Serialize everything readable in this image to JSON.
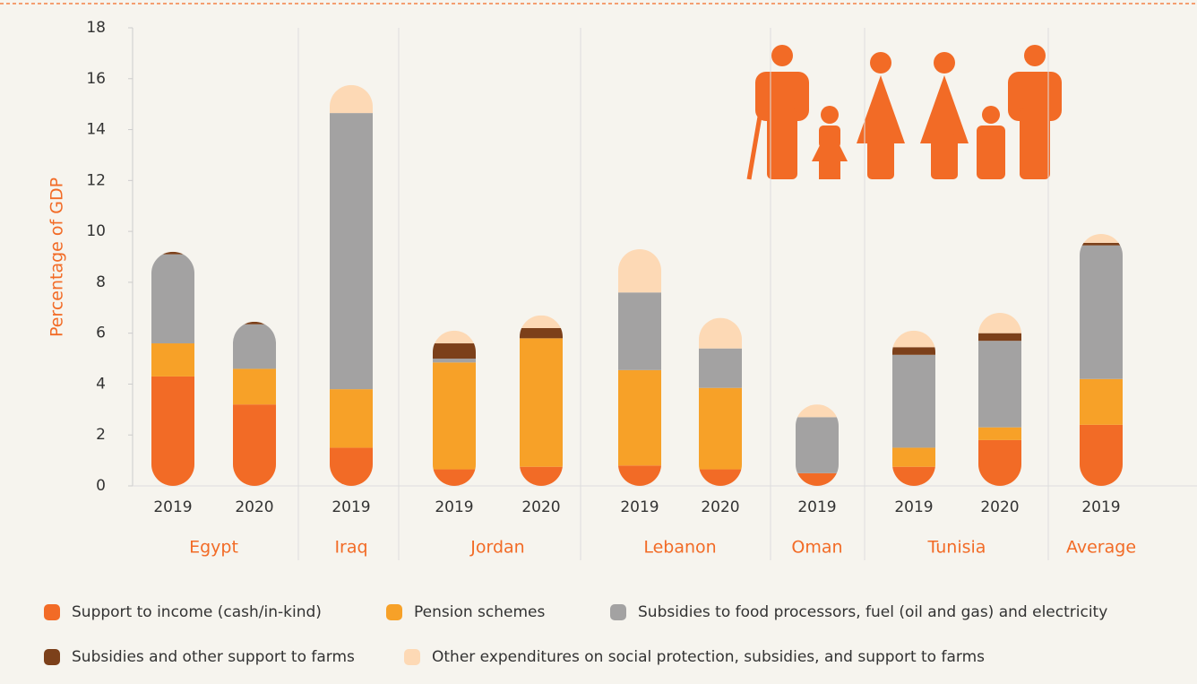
{
  "chart_data": {
    "type": "stacked_bar",
    "y_label": "Percentage of GDP",
    "groups": [
      {
        "name": "Egypt",
        "categories": [
          "2019",
          "2020"
        ]
      },
      {
        "name": "Iraq",
        "categories": [
          "2019"
        ]
      },
      {
        "name": "Jordan",
        "categories": [
          "2019",
          "2020"
        ]
      },
      {
        "name": "Lebanon",
        "categories": [
          "2019",
          "2020"
        ]
      },
      {
        "name": "Oman",
        "categories": [
          "2019"
        ]
      },
      {
        "name": "Tunisia",
        "categories": [
          "2019",
          "2020"
        ]
      },
      {
        "name": "Average",
        "categories": [
          "2019"
        ]
      }
    ],
    "series": [
      {
        "name": "Support to income (cash/in-kind)",
        "color": "#f26b26",
        "values": [
          4.3,
          3.2,
          1.5,
          0.65,
          0.75,
          0.8,
          0.65,
          0.5,
          0.75,
          1.8,
          2.4
        ]
      },
      {
        "name": "Pension schemes",
        "color": "#f7a128",
        "values": [
          1.3,
          1.4,
          2.3,
          4.2,
          5.05,
          3.75,
          3.2,
          0,
          0.75,
          0.5,
          1.8
        ]
      },
      {
        "name": "Subsidies to food processors, fuel (oil and gas) and electricity",
        "color": "#a3a2a2",
        "values": [
          3.5,
          1.75,
          10.85,
          0.15,
          0,
          3.05,
          1.55,
          2.2,
          3.65,
          3.4,
          5.25
        ]
      },
      {
        "name": "Subsidies and other support to farms",
        "color": "#7c401a",
        "values": [
          0.1,
          0.1,
          0,
          0.6,
          0.4,
          0,
          0,
          0,
          0.3,
          0.3,
          0.1
        ]
      },
      {
        "name": "Other expenditures on social protection, subsidies, and support to farms",
        "color": "#fdd9b5",
        "values": [
          0,
          0,
          1.1,
          0.5,
          0.5,
          1.7,
          1.2,
          0.5,
          0.65,
          0.8,
          0.35
        ]
      }
    ],
    "ylim": [
      0,
      18
    ],
    "yticks": [
      0,
      2,
      4,
      6,
      8,
      10,
      12,
      14,
      16,
      18
    ]
  }
}
